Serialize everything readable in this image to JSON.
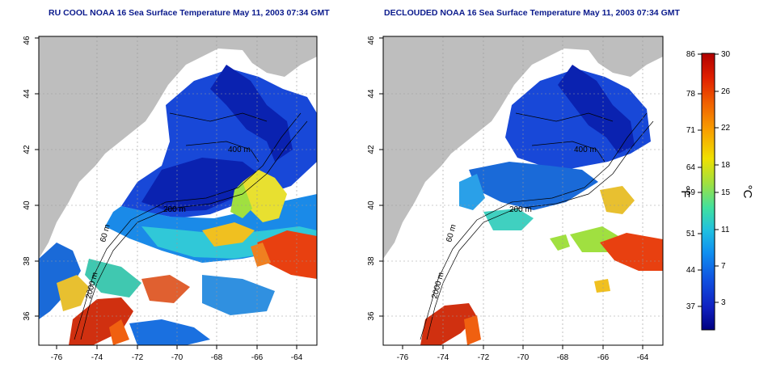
{
  "panels": [
    {
      "title": "RU COOL NOAA 16 Sea Surface Temperature May 11, 2003 07:34 GMT"
    },
    {
      "title": "DECLOUDED NOAA 16 Sea Surface Temperature May 11, 2003 07:34 GMT"
    }
  ],
  "axes": {
    "x_ticks": [
      "-76",
      "-74",
      "-72",
      "-70",
      "-68",
      "-66",
      "-64"
    ],
    "y_ticks": [
      "36",
      "38",
      "40",
      "42",
      "44",
      "46"
    ]
  },
  "contours": {
    "label_2000": "2000 m",
    "label_200": "200 m",
    "label_400": "400 m",
    "label_60": "60 m"
  },
  "colorbar": {
    "left_ticks": [
      "86",
      "78",
      "71",
      "64",
      "59",
      "51",
      "44",
      "37"
    ],
    "right_ticks": [
      "30",
      "26",
      "22",
      "18",
      "15",
      "11",
      "7",
      "3"
    ],
    "left_unit": "°F",
    "right_unit": "°C",
    "colors": [
      "#b00000",
      "#e02000",
      "#f06000",
      "#f8a000",
      "#f0e000",
      "#a0e040",
      "#40e0a0",
      "#20c0e0",
      "#1090f0",
      "#1050e0",
      "#1020c0",
      "#000080"
    ]
  },
  "colors": {
    "land": "#bebebe",
    "title": "#0a1a8c"
  }
}
